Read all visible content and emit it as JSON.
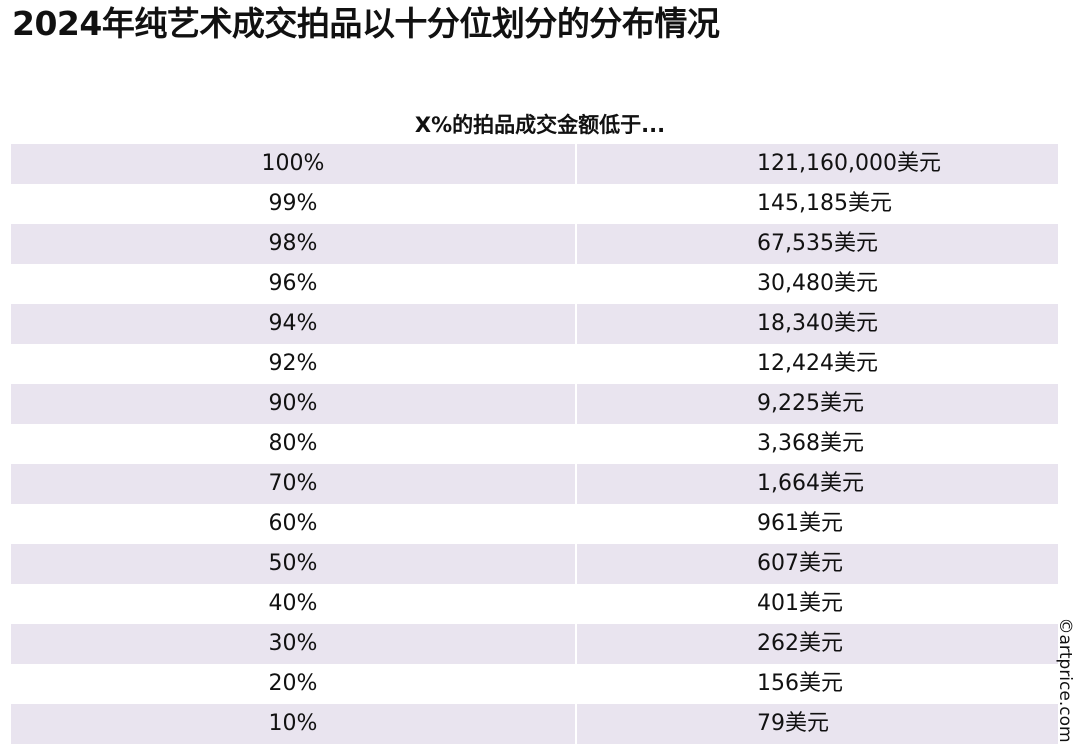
{
  "title": "2024年纯艺术成交拍品以十分位划分的分布情况",
  "subtitle": "X%的拍品成交金额低于...",
  "watermark": "©artprice.com",
  "table": {
    "rows": [
      {
        "percentile": "100%",
        "value": "121,160,000美元"
      },
      {
        "percentile": "99%",
        "value": "145,185美元"
      },
      {
        "percentile": "98%",
        "value": "67,535美元"
      },
      {
        "percentile": "96%",
        "value": "30,480美元"
      },
      {
        "percentile": "94%",
        "value": "18,340美元"
      },
      {
        "percentile": "92%",
        "value": "12,424美元"
      },
      {
        "percentile": "90%",
        "value": "9,225美元"
      },
      {
        "percentile": "80%",
        "value": "3,368美元"
      },
      {
        "percentile": "70%",
        "value": "1,664美元"
      },
      {
        "percentile": "60%",
        "value": "961美元"
      },
      {
        "percentile": "50%",
        "value": "607美元"
      },
      {
        "percentile": "40%",
        "value": "401美元"
      },
      {
        "percentile": "30%",
        "value": "262美元"
      },
      {
        "percentile": "20%",
        "value": "156美元"
      },
      {
        "percentile": "10%",
        "value": "79美元"
      }
    ]
  },
  "colors": {
    "row_stripe": "#e9e4ef",
    "row_plain": "#ffffff",
    "text": "#111111"
  }
}
